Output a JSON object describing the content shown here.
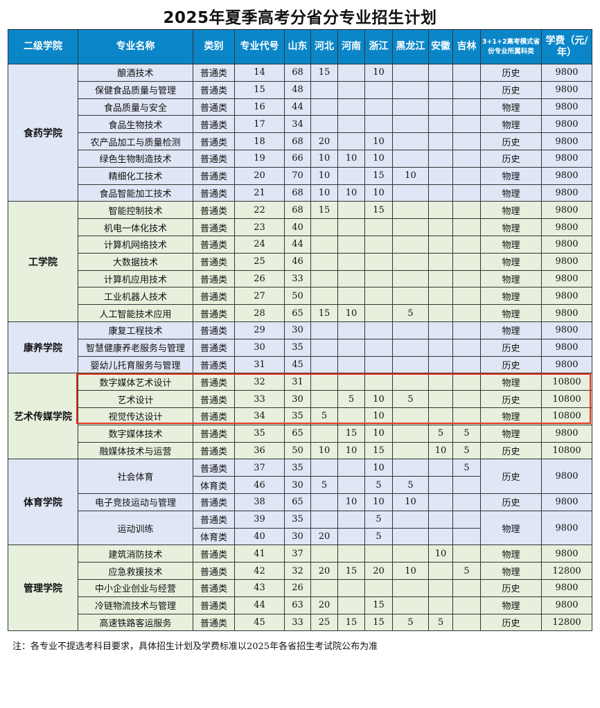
{
  "title": "2025年夏季高考分省分专业招生计划",
  "headers": [
    "二级学院",
    "专业名称",
    "类别",
    "专业代号",
    "山东",
    "河北",
    "河南",
    "浙江",
    "黑龙江",
    "安徽",
    "吉林",
    "3+1+2高考模式省份专业所属科类",
    "学费（元/年）"
  ],
  "colors": {
    "header": "#0a86c8",
    "blue_row": "#dfe6f5",
    "green_row": "#e7f0dd",
    "highlight": "#e8321e"
  },
  "colleges": [
    {
      "name": "食药学院",
      "tone": "blue",
      "majors": [
        {
          "name": "酿酒技术",
          "subject": "历史",
          "fee": "9800",
          "entries": [
            {
              "type": "普通类",
              "code": "14",
              "quotas": [
                "68",
                "15",
                "",
                "10",
                "",
                "",
                ""
              ]
            }
          ]
        },
        {
          "name": "保健食品质量与管理",
          "subject": "历史",
          "fee": "9800",
          "entries": [
            {
              "type": "普通类",
              "code": "15",
              "quotas": [
                "48",
                "",
                "",
                "",
                "",
                "",
                ""
              ]
            }
          ]
        },
        {
          "name": "食品质量与安全",
          "subject": "物理",
          "fee": "9800",
          "entries": [
            {
              "type": "普通类",
              "code": "16",
              "quotas": [
                "44",
                "",
                "",
                "",
                "",
                "",
                ""
              ]
            }
          ]
        },
        {
          "name": "食品生物技术",
          "subject": "物理",
          "fee": "9800",
          "entries": [
            {
              "type": "普通类",
              "code": "17",
              "quotas": [
                "34",
                "",
                "",
                "",
                "",
                "",
                ""
              ]
            }
          ]
        },
        {
          "name": "农产品加工与质量检测",
          "subject": "历史",
          "fee": "9800",
          "entries": [
            {
              "type": "普通类",
              "code": "18",
              "quotas": [
                "68",
                "20",
                "",
                "10",
                "",
                "",
                ""
              ]
            }
          ]
        },
        {
          "name": "绿色生物制造技术",
          "subject": "历史",
          "fee": "9800",
          "entries": [
            {
              "type": "普通类",
              "code": "19",
              "quotas": [
                "66",
                "10",
                "10",
                "10",
                "",
                "",
                ""
              ]
            }
          ]
        },
        {
          "name": "精细化工技术",
          "subject": "物理",
          "fee": "9800",
          "entries": [
            {
              "type": "普通类",
              "code": "20",
              "quotas": [
                "70",
                "10",
                "",
                "15",
                "10",
                "",
                ""
              ]
            }
          ]
        },
        {
          "name": "食品智能加工技术",
          "subject": "物理",
          "fee": "9800",
          "entries": [
            {
              "type": "普通类",
              "code": "21",
              "quotas": [
                "68",
                "10",
                "10",
                "10",
                "",
                "",
                ""
              ]
            }
          ]
        }
      ]
    },
    {
      "name": "工学院",
      "tone": "green",
      "majors": [
        {
          "name": "智能控制技术",
          "subject": "物理",
          "fee": "9800",
          "entries": [
            {
              "type": "普通类",
              "code": "22",
              "quotas": [
                "68",
                "15",
                "",
                "15",
                "",
                "",
                ""
              ]
            }
          ]
        },
        {
          "name": "机电一体化技术",
          "subject": "物理",
          "fee": "9800",
          "entries": [
            {
              "type": "普通类",
              "code": "23",
              "quotas": [
                "40",
                "",
                "",
                "",
                "",
                "",
                ""
              ]
            }
          ]
        },
        {
          "name": "计算机网络技术",
          "subject": "物理",
          "fee": "9800",
          "entries": [
            {
              "type": "普通类",
              "code": "24",
              "quotas": [
                "44",
                "",
                "",
                "",
                "",
                "",
                ""
              ]
            }
          ]
        },
        {
          "name": "大数据技术",
          "subject": "物理",
          "fee": "9800",
          "entries": [
            {
              "type": "普通类",
              "code": "25",
              "quotas": [
                "46",
                "",
                "",
                "",
                "",
                "",
                ""
              ]
            }
          ]
        },
        {
          "name": "计算机应用技术",
          "subject": "物理",
          "fee": "9800",
          "entries": [
            {
              "type": "普通类",
              "code": "26",
              "quotas": [
                "33",
                "",
                "",
                "",
                "",
                "",
                ""
              ]
            }
          ]
        },
        {
          "name": "工业机器人技术",
          "subject": "物理",
          "fee": "9800",
          "entries": [
            {
              "type": "普通类",
              "code": "27",
              "quotas": [
                "50",
                "",
                "",
                "",
                "",
                "",
                ""
              ]
            }
          ]
        },
        {
          "name": "人工智能技术应用",
          "subject": "物理",
          "fee": "9800",
          "entries": [
            {
              "type": "普通类",
              "code": "28",
              "quotas": [
                "65",
                "15",
                "10",
                "",
                "5",
                "",
                ""
              ]
            }
          ]
        }
      ]
    },
    {
      "name": "康养学院",
      "tone": "blue",
      "majors": [
        {
          "name": "康复工程技术",
          "subject": "物理",
          "fee": "9800",
          "entries": [
            {
              "type": "普通类",
              "code": "29",
              "quotas": [
                "30",
                "",
                "",
                "",
                "",
                "",
                ""
              ]
            }
          ]
        },
        {
          "name": "智慧健康养老服务与管理",
          "subject": "历史",
          "fee": "9800",
          "entries": [
            {
              "type": "普通类",
              "code": "30",
              "quotas": [
                "35",
                "",
                "",
                "",
                "",
                "",
                ""
              ]
            }
          ]
        },
        {
          "name": "婴幼儿托育服务与管理",
          "subject": "历史",
          "fee": "9800",
          "entries": [
            {
              "type": "普通类",
              "code": "31",
              "quotas": [
                "45",
                "",
                "",
                "",
                "",
                "",
                ""
              ]
            }
          ]
        }
      ]
    },
    {
      "name": "艺术传媒学院",
      "tone": "green",
      "majors": [
        {
          "name": "数字媒体艺术设计",
          "subject": "物理",
          "fee": "10800",
          "highlighted": true,
          "entries": [
            {
              "type": "普通类",
              "code": "32",
              "quotas": [
                "31",
                "",
                "",
                "",
                "",
                "",
                ""
              ]
            }
          ]
        },
        {
          "name": "艺术设计",
          "subject": "历史",
          "fee": "10800",
          "highlighted": true,
          "entries": [
            {
              "type": "普通类",
              "code": "33",
              "quotas": [
                "30",
                "",
                "5",
                "10",
                "5",
                "",
                ""
              ]
            }
          ]
        },
        {
          "name": "视觉传达设计",
          "subject": "物理",
          "fee": "10800",
          "highlighted": true,
          "entries": [
            {
              "type": "普通类",
              "code": "34",
              "quotas": [
                "35",
                "5",
                "",
                "10",
                "",
                "",
                ""
              ]
            }
          ]
        },
        {
          "name": "数字媒体技术",
          "subject": "物理",
          "fee": "9800",
          "entries": [
            {
              "type": "普通类",
              "code": "35",
              "quotas": [
                "65",
                "",
                "15",
                "10",
                "",
                "5",
                "5"
              ]
            }
          ]
        },
        {
          "name": "融媒体技术与运营",
          "subject": "历史",
          "fee": "10800",
          "entries": [
            {
              "type": "普通类",
              "code": "36",
              "quotas": [
                "50",
                "10",
                "10",
                "15",
                "",
                "10",
                "5"
              ]
            }
          ]
        }
      ]
    },
    {
      "name": "体育学院",
      "tone": "blue",
      "majors": [
        {
          "name": "社会体育",
          "subject": "历史",
          "fee": "9800",
          "entries": [
            {
              "type": "普通类",
              "code": "37",
              "quotas": [
                "35",
                "",
                "",
                "10",
                "",
                "",
                "5"
              ]
            },
            {
              "type": "体育类",
              "code": "46",
              "quotas": [
                "30",
                "5",
                "",
                "5",
                "5",
                "",
                ""
              ]
            }
          ]
        },
        {
          "name": "电子竞技运动与管理",
          "subject": "历史",
          "fee": "9800",
          "entries": [
            {
              "type": "普通类",
              "code": "38",
              "quotas": [
                "65",
                "",
                "10",
                "10",
                "10",
                "",
                ""
              ]
            }
          ]
        },
        {
          "name": "运动训练",
          "subject": "物理",
          "fee": "9800",
          "entries": [
            {
              "type": "普通类",
              "code": "39",
              "quotas": [
                "35",
                "",
                "",
                "5",
                "",
                "",
                ""
              ]
            },
            {
              "type": "体育类",
              "code": "40",
              "quotas": [
                "30",
                "20",
                "",
                "5",
                "",
                "",
                ""
              ]
            }
          ]
        }
      ]
    },
    {
      "name": "管理学院",
      "tone": "green",
      "majors": [
        {
          "name": "建筑消防技术",
          "subject": "物理",
          "fee": "9800",
          "entries": [
            {
              "type": "普通类",
              "code": "41",
              "quotas": [
                "37",
                "",
                "",
                "",
                "",
                "10",
                ""
              ]
            }
          ]
        },
        {
          "name": "应急救援技术",
          "subject": "物理",
          "fee": "12800",
          "entries": [
            {
              "type": "普通类",
              "code": "42",
              "quotas": [
                "32",
                "20",
                "15",
                "20",
                "10",
                "",
                "5"
              ]
            }
          ]
        },
        {
          "name": "中小企业创业与经营",
          "subject": "历史",
          "fee": "9800",
          "entries": [
            {
              "type": "普通类",
              "code": "43",
              "quotas": [
                "26",
                "",
                "",
                "",
                "",
                "",
                ""
              ]
            }
          ]
        },
        {
          "name": "冷链物流技术与管理",
          "subject": "物理",
          "fee": "9800",
          "entries": [
            {
              "type": "普通类",
              "code": "44",
              "quotas": [
                "63",
                "20",
                "",
                "15",
                "",
                "",
                ""
              ]
            }
          ]
        },
        {
          "name": "高速铁路客运服务",
          "subject": "历史",
          "fee": "12800",
          "entries": [
            {
              "type": "普通类",
              "code": "45",
              "quotas": [
                "33",
                "25",
                "15",
                "15",
                "5",
                "5",
                ""
              ]
            }
          ]
        }
      ]
    }
  ],
  "note": "注：各专业不提选考科目要求，具体招生计划及学费标准以2025年各省招生考试院公布为准"
}
